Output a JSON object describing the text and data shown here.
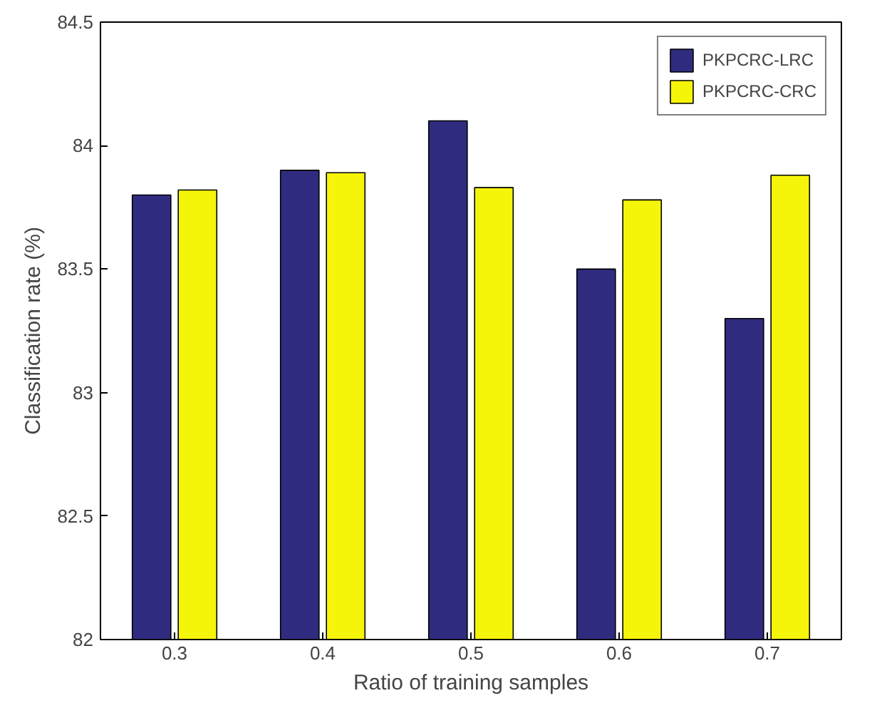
{
  "chart_data": {
    "type": "bar",
    "xlabel": "Ratio of training samples",
    "ylabel": "Classification rate (%)",
    "categories": [
      "0.3",
      "0.4",
      "0.5",
      "0.6",
      "0.7"
    ],
    "series": [
      {
        "name": "PKPCRC-LRC",
        "color": "#2f2c80",
        "values": [
          83.8,
          83.9,
          84.1,
          83.5,
          83.3
        ]
      },
      {
        "name": "PKPCRC-CRC",
        "color": "#f5f50a",
        "values": [
          83.82,
          83.89,
          83.83,
          83.78,
          83.88
        ]
      }
    ],
    "ylim": [
      82,
      84.5
    ],
    "yticks": [
      82,
      82.5,
      83,
      83.5,
      84,
      84.5
    ],
    "grid": false,
    "legend": "top right"
  }
}
